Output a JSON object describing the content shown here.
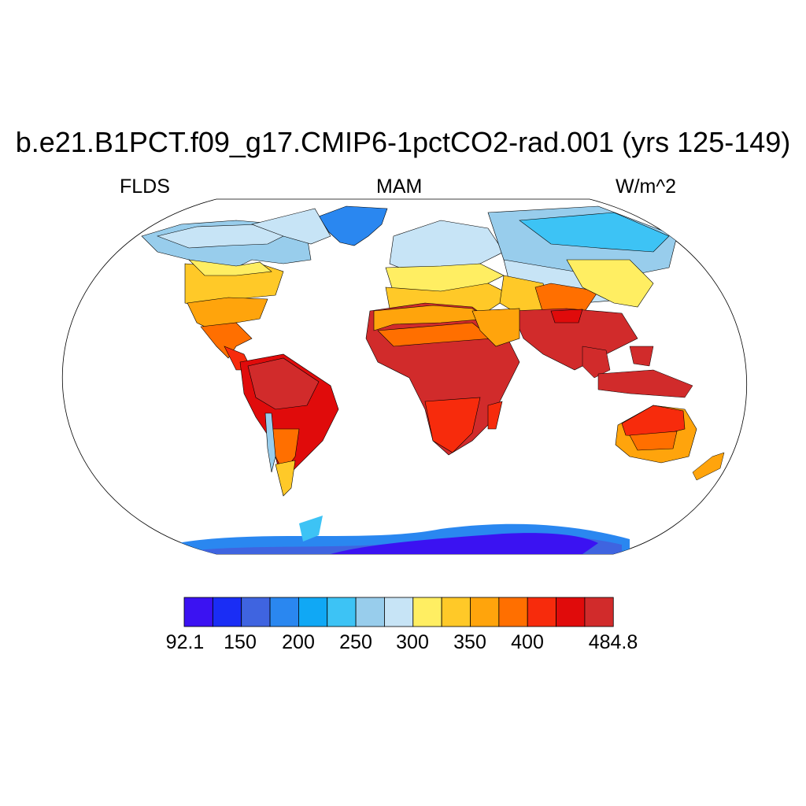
{
  "title": "b.e21.B1PCT.f09_g17.CMIP6-1pctCO2-rad.001 (yrs 125-149)",
  "variable": "FLDS",
  "season": "MAM",
  "units": "W/m^2",
  "colorbar": {
    "colors": [
      "#3b12f2",
      "#1a2df5",
      "#3f64e0",
      "#2a87f0",
      "#10a8f5",
      "#3dc3f5",
      "#98cdec",
      "#c7e4f6",
      "#ffee62",
      "#ffc928",
      "#ffa40c",
      "#ff6f00",
      "#f72b0c",
      "#e00b0b",
      "#d12b2b"
    ],
    "labels": [
      "92.1",
      "150",
      "200",
      "250",
      "300",
      "350",
      "400",
      "484.8"
    ]
  }
}
